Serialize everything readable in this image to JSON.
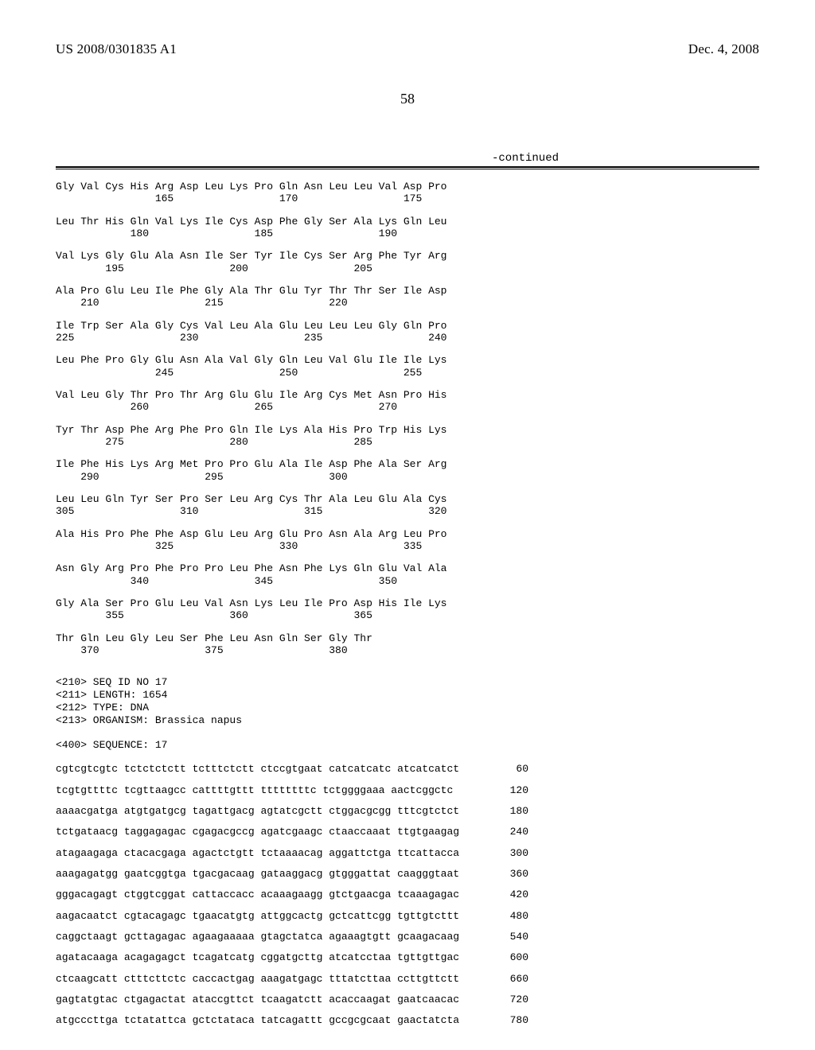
{
  "header": {
    "publication_number": "US 2008/0301835 A1",
    "publication_date": "Dec. 4, 2008"
  },
  "page_number": "58",
  "continued_label": "-continued",
  "protein_sequence": [
    {
      "aa": "Gly Val Cys His Arg Asp Leu Lys Pro Gln Asn Leu Leu Val Asp Pro",
      "nm": "                165                 170                 175"
    },
    {
      "aa": "Leu Thr His Gln Val Lys Ile Cys Asp Phe Gly Ser Ala Lys Gln Leu",
      "nm": "            180                 185                 190"
    },
    {
      "aa": "Val Lys Gly Glu Ala Asn Ile Ser Tyr Ile Cys Ser Arg Phe Tyr Arg",
      "nm": "        195                 200                 205"
    },
    {
      "aa": "Ala Pro Glu Leu Ile Phe Gly Ala Thr Glu Tyr Thr Thr Ser Ile Asp",
      "nm": "    210                 215                 220"
    },
    {
      "aa": "Ile Trp Ser Ala Gly Cys Val Leu Ala Glu Leu Leu Leu Gly Gln Pro",
      "nm": "225                 230                 235                 240"
    },
    {
      "aa": "Leu Phe Pro Gly Glu Asn Ala Val Gly Gln Leu Val Glu Ile Ile Lys",
      "nm": "                245                 250                 255"
    },
    {
      "aa": "Val Leu Gly Thr Pro Thr Arg Glu Glu Ile Arg Cys Met Asn Pro His",
      "nm": "            260                 265                 270"
    },
    {
      "aa": "Tyr Thr Asp Phe Arg Phe Pro Gln Ile Lys Ala His Pro Trp His Lys",
      "nm": "        275                 280                 285"
    },
    {
      "aa": "Ile Phe His Lys Arg Met Pro Pro Glu Ala Ile Asp Phe Ala Ser Arg",
      "nm": "    290                 295                 300"
    },
    {
      "aa": "Leu Leu Gln Tyr Ser Pro Ser Leu Arg Cys Thr Ala Leu Glu Ala Cys",
      "nm": "305                 310                 315                 320"
    },
    {
      "aa": "Ala His Pro Phe Phe Asp Glu Leu Arg Glu Pro Asn Ala Arg Leu Pro",
      "nm": "                325                 330                 335"
    },
    {
      "aa": "Asn Gly Arg Pro Phe Pro Pro Leu Phe Asn Phe Lys Gln Glu Val Ala",
      "nm": "            340                 345                 350"
    },
    {
      "aa": "Gly Ala Ser Pro Glu Leu Val Asn Lys Leu Ile Pro Asp His Ile Lys",
      "nm": "        355                 360                 365"
    },
    {
      "aa": "Thr Gln Leu Gly Leu Ser Phe Leu Asn Gln Ser Gly Thr",
      "nm": "    370                 375                 380"
    }
  ],
  "seq_meta": [
    "<210> SEQ ID NO 17",
    "<211> LENGTH: 1654",
    "<212> TYPE: DNA",
    "<213> ORGANISM: Brassica napus",
    "",
    "<400> SEQUENCE: 17"
  ],
  "dna_sequence": [
    {
      "seq": "cgtcgtcgtc tctctctctt tctttctctt ctccgtgaat catcatcatc atcatcatct",
      "num": "60"
    },
    {
      "seq": "tcgtgttttc tcgttaagcc cattttgttt ttttttttc tctggggaaa aactcggctc",
      "num": "120"
    },
    {
      "seq": "aaaacgatga atgtgatgcg tagattgacg agtatcgctt ctggacgcgg tttcgtctct",
      "num": "180"
    },
    {
      "seq": "tctgataacg taggagagac cgagacgccg agatcgaagc ctaaccaaat ttgtgaagag",
      "num": "240"
    },
    {
      "seq": "atagaagaga ctacacgaga agactctgtt tctaaaacag aggattctga ttcattacca",
      "num": "300"
    },
    {
      "seq": "aaagagatgg gaatcggtga tgacgacaag gataaggacg gtgggattat caagggtaat",
      "num": "360"
    },
    {
      "seq": "gggacagagt ctggtcggat cattaccacc acaaagaagg gtctgaacga tcaaagagac",
      "num": "420"
    },
    {
      "seq": "aagacaatct cgtacagagc tgaacatgtg attggcactg gctcattcgg tgttgtcttt",
      "num": "480"
    },
    {
      "seq": "caggctaagt gcttagagac agaagaaaaa gtagctatca agaaagtgtt gcaagacaag",
      "num": "540"
    },
    {
      "seq": "agatacaaga acagagagct tcagatcatg cggatgcttg atcatcctaa tgttgttgac",
      "num": "600"
    },
    {
      "seq": "ctcaagcatt ctttcttctc caccactgag aaagatgagc tttatcttaa ccttgttctt",
      "num": "660"
    },
    {
      "seq": "gagtatgtac ctgagactat ataccgttct tcaagatctt acaccaagat gaatcaacac",
      "num": "720"
    },
    {
      "seq": "atgcccttga tctatattca gctctataca tatcagattt gccgcgcaat gaactatcta",
      "num": "780"
    }
  ]
}
